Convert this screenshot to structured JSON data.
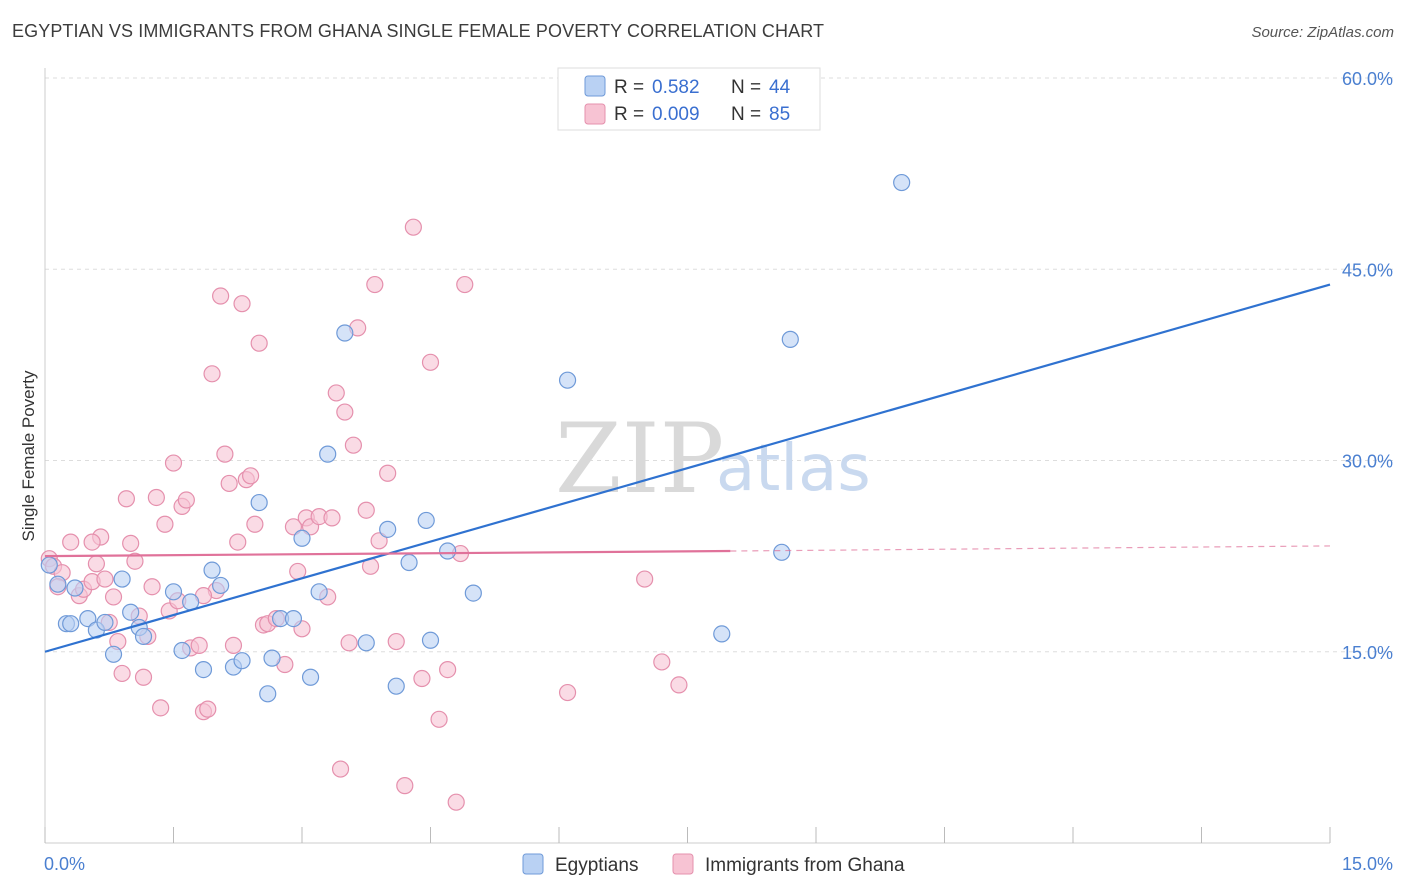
{
  "title": "EGYPTIAN VS IMMIGRANTS FROM GHANA SINGLE FEMALE POVERTY CORRELATION CHART",
  "source": "Source: ZipAtlas.com",
  "watermark": {
    "zip": "ZIP",
    "atlas": "atlas"
  },
  "colors": {
    "blue_fill": "#b9d1f3",
    "blue_stroke": "#6f9ad8",
    "blue_line": "#2f72d0",
    "pink_fill": "#f7c3d3",
    "pink_stroke": "#e590ad",
    "pink_line": "#e0729a",
    "grid": "#dddddd",
    "tick_text": "#4a7fd0"
  },
  "legend_top": {
    "rows": [
      {
        "r_label": "R =",
        "r_value": "0.582",
        "n_label": "N =",
        "n_value": "44"
      },
      {
        "r_label": "R =",
        "r_value": "0.009",
        "n_label": "N =",
        "n_value": "85"
      }
    ]
  },
  "legend_bottom": {
    "items": [
      "Egyptians",
      "Immigrants from Ghana"
    ]
  },
  "chart_data": {
    "type": "scatter",
    "title": "EGYPTIAN VS IMMIGRANTS FROM GHANA SINGLE FEMALE POVERTY CORRELATION CHART",
    "xlabel": "",
    "ylabel": "Single Female Poverty",
    "xlim": [
      0,
      15
    ],
    "ylim": [
      0,
      60
    ],
    "x_tick_labels": [
      "0.0%",
      "15.0%"
    ],
    "y_ticks": [
      15,
      30,
      45,
      60
    ],
    "y_tick_labels": [
      "15.0%",
      "30.0%",
      "45.0%",
      "60.0%"
    ],
    "grid": true,
    "legend_position": "top-center",
    "series": [
      {
        "name": "Egyptians",
        "color": "#6f9ad8",
        "trend": {
          "x": [
            0,
            15
          ],
          "y": [
            15.0,
            43.8
          ],
          "dashed_to": null
        },
        "points": [
          [
            0.05,
            21.8
          ],
          [
            0.15,
            20.3
          ],
          [
            0.25,
            17.2
          ],
          [
            0.35,
            20.0
          ],
          [
            0.5,
            17.6
          ],
          [
            0.6,
            16.7
          ],
          [
            0.7,
            17.3
          ],
          [
            0.8,
            14.8
          ],
          [
            0.9,
            20.7
          ],
          [
            1.0,
            18.1
          ],
          [
            1.1,
            16.9
          ],
          [
            1.15,
            16.2
          ],
          [
            1.5,
            19.7
          ],
          [
            1.6,
            15.1
          ],
          [
            1.7,
            18.9
          ],
          [
            1.85,
            13.6
          ],
          [
            1.95,
            21.4
          ],
          [
            2.05,
            20.2
          ],
          [
            2.2,
            13.8
          ],
          [
            2.3,
            14.3
          ],
          [
            2.5,
            26.7
          ],
          [
            2.6,
            11.7
          ],
          [
            2.65,
            14.5
          ],
          [
            2.75,
            17.6
          ],
          [
            2.9,
            17.6
          ],
          [
            3.0,
            23.9
          ],
          [
            3.1,
            13.0
          ],
          [
            3.2,
            19.7
          ],
          [
            3.3,
            30.5
          ],
          [
            3.5,
            40.0
          ],
          [
            3.75,
            15.7
          ],
          [
            4.0,
            24.6
          ],
          [
            4.1,
            12.3
          ],
          [
            4.25,
            22.0
          ],
          [
            4.45,
            25.3
          ],
          [
            4.5,
            15.9
          ],
          [
            4.7,
            22.9
          ],
          [
            5.0,
            19.6
          ],
          [
            6.1,
            36.3
          ],
          [
            7.9,
            16.4
          ],
          [
            8.6,
            22.8
          ],
          [
            8.7,
            39.5
          ],
          [
            10.0,
            51.8
          ],
          [
            0.3,
            17.2
          ]
        ]
      },
      {
        "name": "Immigrants from Ghana",
        "color": "#e590ad",
        "trend": {
          "x": [
            0,
            8.0
          ],
          "y": [
            22.5,
            22.9
          ],
          "dashed_to": [
            15,
            23.3
          ]
        },
        "points": [
          [
            0.05,
            22.3
          ],
          [
            0.1,
            21.7
          ],
          [
            0.2,
            21.2
          ],
          [
            0.3,
            23.6
          ],
          [
            0.4,
            19.4
          ],
          [
            0.45,
            19.9
          ],
          [
            0.55,
            20.5
          ],
          [
            0.6,
            21.9
          ],
          [
            0.65,
            24.0
          ],
          [
            0.7,
            20.7
          ],
          [
            0.75,
            17.3
          ],
          [
            0.8,
            19.3
          ],
          [
            0.85,
            15.8
          ],
          [
            0.9,
            13.3
          ],
          [
            0.95,
            27.0
          ],
          [
            1.0,
            23.5
          ],
          [
            1.05,
            22.1
          ],
          [
            1.1,
            17.8
          ],
          [
            1.15,
            13.0
          ],
          [
            1.2,
            16.2
          ],
          [
            1.25,
            20.1
          ],
          [
            1.3,
            27.1
          ],
          [
            1.35,
            10.6
          ],
          [
            1.4,
            25.0
          ],
          [
            1.45,
            18.2
          ],
          [
            1.5,
            29.8
          ],
          [
            1.55,
            19.0
          ],
          [
            1.6,
            26.4
          ],
          [
            1.65,
            26.9
          ],
          [
            1.7,
            15.3
          ],
          [
            1.8,
            15.5
          ],
          [
            1.85,
            10.3
          ],
          [
            1.9,
            10.5
          ],
          [
            1.95,
            36.8
          ],
          [
            2.0,
            19.8
          ],
          [
            2.05,
            42.9
          ],
          [
            2.1,
            30.5
          ],
          [
            2.15,
            28.2
          ],
          [
            2.2,
            15.5
          ],
          [
            2.25,
            23.6
          ],
          [
            2.3,
            42.3
          ],
          [
            2.35,
            28.5
          ],
          [
            2.4,
            28.8
          ],
          [
            2.45,
            25.0
          ],
          [
            2.5,
            39.2
          ],
          [
            2.55,
            17.1
          ],
          [
            2.6,
            17.2
          ],
          [
            2.7,
            17.6
          ],
          [
            2.8,
            14.0
          ],
          [
            2.9,
            24.8
          ],
          [
            2.95,
            21.3
          ],
          [
            3.0,
            16.8
          ],
          [
            3.05,
            25.5
          ],
          [
            3.1,
            24.8
          ],
          [
            3.2,
            25.6
          ],
          [
            3.3,
            19.3
          ],
          [
            3.4,
            35.3
          ],
          [
            3.45,
            5.8
          ],
          [
            3.5,
            33.8
          ],
          [
            3.55,
            15.7
          ],
          [
            3.6,
            31.2
          ],
          [
            3.65,
            40.4
          ],
          [
            3.75,
            26.1
          ],
          [
            3.8,
            21.7
          ],
          [
            3.85,
            43.8
          ],
          [
            3.9,
            23.7
          ],
          [
            4.0,
            29.0
          ],
          [
            4.1,
            15.8
          ],
          [
            4.2,
            4.5
          ],
          [
            4.3,
            48.3
          ],
          [
            4.4,
            12.9
          ],
          [
            4.5,
            37.7
          ],
          [
            4.6,
            9.7
          ],
          [
            4.7,
            13.6
          ],
          [
            4.8,
            3.2
          ],
          [
            4.85,
            22.7
          ],
          [
            4.9,
            43.8
          ],
          [
            6.1,
            11.8
          ],
          [
            7.0,
            20.7
          ],
          [
            7.2,
            14.2
          ],
          [
            7.4,
            12.4
          ],
          [
            0.15,
            20.1
          ],
          [
            0.55,
            23.6
          ],
          [
            1.85,
            19.4
          ],
          [
            3.35,
            25.5
          ]
        ]
      }
    ]
  }
}
